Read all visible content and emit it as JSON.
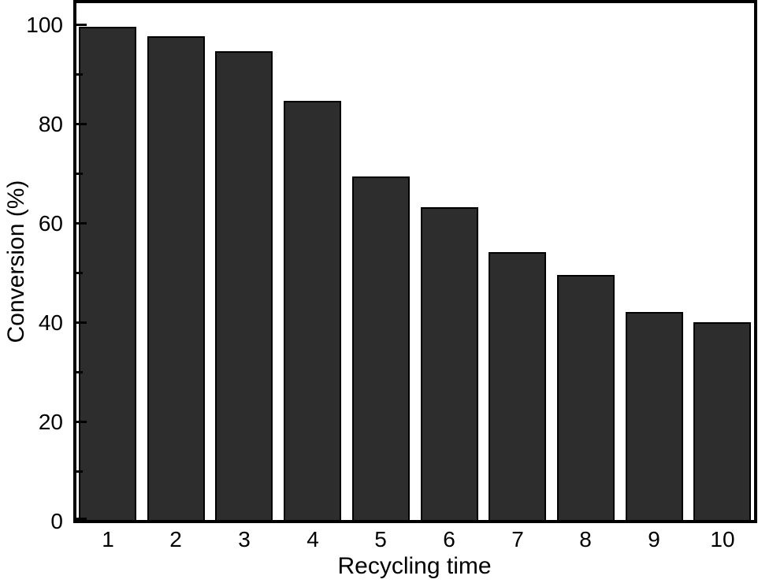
{
  "chart_data": {
    "type": "bar",
    "title": "",
    "xlabel": "Recycling time",
    "ylabel": "Conversion (%)",
    "categories": [
      "1",
      "2",
      "3",
      "4",
      "5",
      "6",
      "7",
      "8",
      "9",
      "10"
    ],
    "values": [
      99.7,
      97.8,
      94.7,
      84.7,
      69.4,
      63.2,
      54.2,
      49.6,
      42.1,
      40.0
    ],
    "series_name": "Conversion",
    "ylim": [
      0,
      104.5
    ],
    "yticks_major": [
      0,
      20,
      40,
      60,
      80,
      100
    ],
    "yticks_minor": [
      10,
      30,
      50,
      70,
      90
    ],
    "grid": false,
    "legend": "none",
    "bar_color": "#2d2d2d",
    "bar_border_color": "#000000",
    "axis_color": "#000000",
    "background": "#ffffff"
  }
}
